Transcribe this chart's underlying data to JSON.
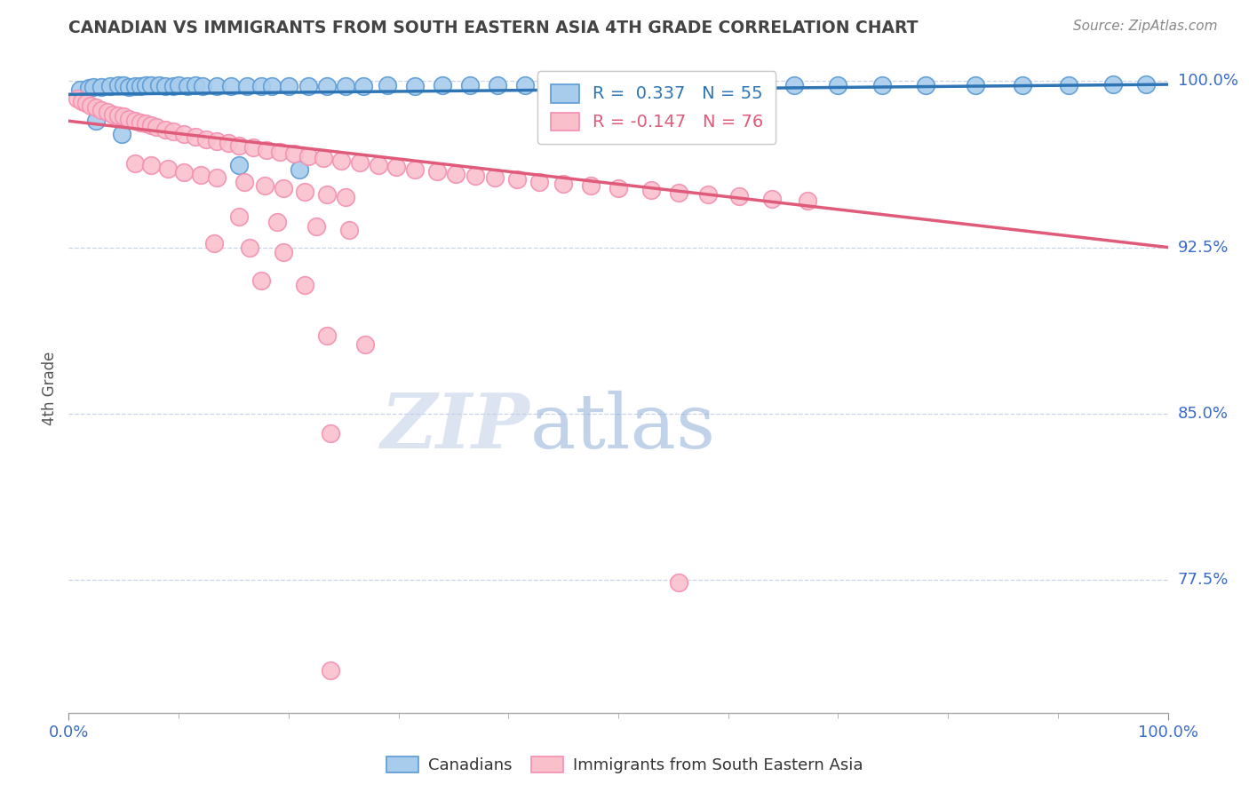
{
  "title": "CANADIAN VS IMMIGRANTS FROM SOUTH EASTERN ASIA 4TH GRADE CORRELATION CHART",
  "source_text": "Source: ZipAtlas.com",
  "ylabel": "4th Grade",
  "x_min": 0.0,
  "x_max": 1.0,
  "y_min": 0.715,
  "y_max": 1.008,
  "y_ticks": [
    1.0,
    0.925,
    0.85,
    0.775
  ],
  "y_tick_labels": [
    "100.0%",
    "92.5%",
    "85.0%",
    "77.5%"
  ],
  "x_tick_labels": [
    "0.0%",
    "100.0%"
  ],
  "legend_blue_label": "R =  0.337   N = 55",
  "legend_pink_label": "R = -0.147   N = 76",
  "legend_xlabel": "Canadians",
  "legend_xlabel2": "Immigrants from South Eastern Asia",
  "blue_fill_color": "#a8ccec",
  "pink_fill_color": "#f9c0cc",
  "blue_edge_color": "#5b9bd5",
  "pink_edge_color": "#f48fb1",
  "blue_line_color": "#2e75b6",
  "pink_line_color": "#e05a7a",
  "blue_scatter": [
    [
      0.01,
      0.996
    ],
    [
      0.018,
      0.997
    ],
    [
      0.022,
      0.9975
    ],
    [
      0.03,
      0.9975
    ],
    [
      0.038,
      0.9978
    ],
    [
      0.045,
      0.998
    ],
    [
      0.05,
      0.998
    ],
    [
      0.055,
      0.9975
    ],
    [
      0.06,
      0.9978
    ],
    [
      0.065,
      0.9978
    ],
    [
      0.07,
      0.998
    ],
    [
      0.075,
      0.998
    ],
    [
      0.082,
      0.998
    ],
    [
      0.088,
      0.9978
    ],
    [
      0.095,
      0.9978
    ],
    [
      0.1,
      0.998
    ],
    [
      0.108,
      0.9978
    ],
    [
      0.115,
      0.998
    ],
    [
      0.122,
      0.9978
    ],
    [
      0.135,
      0.9978
    ],
    [
      0.148,
      0.9978
    ],
    [
      0.162,
      0.9978
    ],
    [
      0.175,
      0.9978
    ],
    [
      0.185,
      0.9978
    ],
    [
      0.2,
      0.9978
    ],
    [
      0.218,
      0.9978
    ],
    [
      0.235,
      0.9978
    ],
    [
      0.252,
      0.9978
    ],
    [
      0.268,
      0.9978
    ],
    [
      0.29,
      0.998
    ],
    [
      0.315,
      0.9978
    ],
    [
      0.34,
      0.998
    ],
    [
      0.365,
      0.998
    ],
    [
      0.39,
      0.998
    ],
    [
      0.415,
      0.998
    ],
    [
      0.445,
      0.998
    ],
    [
      0.47,
      0.998
    ],
    [
      0.5,
      0.998
    ],
    [
      0.53,
      0.998
    ],
    [
      0.56,
      0.9978
    ],
    [
      0.59,
      0.998
    ],
    [
      0.625,
      0.998
    ],
    [
      0.66,
      0.998
    ],
    [
      0.7,
      0.9982
    ],
    [
      0.74,
      0.9982
    ],
    [
      0.78,
      0.9982
    ],
    [
      0.825,
      0.9982
    ],
    [
      0.868,
      0.9982
    ],
    [
      0.91,
      0.9982
    ],
    [
      0.95,
      0.9985
    ],
    [
      0.98,
      0.9985
    ],
    [
      0.025,
      0.982
    ],
    [
      0.048,
      0.976
    ],
    [
      0.155,
      0.962
    ],
    [
      0.21,
      0.96
    ]
  ],
  "pink_scatter": [
    [
      0.008,
      0.992
    ],
    [
      0.012,
      0.991
    ],
    [
      0.016,
      0.99
    ],
    [
      0.02,
      0.989
    ],
    [
      0.025,
      0.988
    ],
    [
      0.03,
      0.987
    ],
    [
      0.035,
      0.986
    ],
    [
      0.04,
      0.985
    ],
    [
      0.045,
      0.9845
    ],
    [
      0.05,
      0.984
    ],
    [
      0.055,
      0.983
    ],
    [
      0.06,
      0.982
    ],
    [
      0.065,
      0.9815
    ],
    [
      0.07,
      0.9808
    ],
    [
      0.075,
      0.98
    ],
    [
      0.08,
      0.9792
    ],
    [
      0.088,
      0.978
    ],
    [
      0.095,
      0.9772
    ],
    [
      0.105,
      0.976
    ],
    [
      0.115,
      0.9748
    ],
    [
      0.125,
      0.9738
    ],
    [
      0.135,
      0.9728
    ],
    [
      0.145,
      0.972
    ],
    [
      0.155,
      0.971
    ],
    [
      0.168,
      0.97
    ],
    [
      0.18,
      0.969
    ],
    [
      0.192,
      0.968
    ],
    [
      0.205,
      0.9672
    ],
    [
      0.218,
      0.9662
    ],
    [
      0.232,
      0.9652
    ],
    [
      0.248,
      0.9642
    ],
    [
      0.265,
      0.9632
    ],
    [
      0.282,
      0.9622
    ],
    [
      0.298,
      0.9612
    ],
    [
      0.315,
      0.9602
    ],
    [
      0.335,
      0.9592
    ],
    [
      0.352,
      0.9582
    ],
    [
      0.37,
      0.9572
    ],
    [
      0.388,
      0.9565
    ],
    [
      0.408,
      0.9555
    ],
    [
      0.428,
      0.9545
    ],
    [
      0.45,
      0.9538
    ],
    [
      0.475,
      0.9528
    ],
    [
      0.5,
      0.9518
    ],
    [
      0.53,
      0.9508
    ],
    [
      0.555,
      0.9498
    ],
    [
      0.582,
      0.9488
    ],
    [
      0.61,
      0.948
    ],
    [
      0.64,
      0.947
    ],
    [
      0.672,
      0.946
    ],
    [
      0.06,
      0.963
    ],
    [
      0.075,
      0.962
    ],
    [
      0.09,
      0.9605
    ],
    [
      0.105,
      0.959
    ],
    [
      0.12,
      0.9575
    ],
    [
      0.135,
      0.9565
    ],
    [
      0.16,
      0.9545
    ],
    [
      0.178,
      0.953
    ],
    [
      0.195,
      0.9515
    ],
    [
      0.215,
      0.95
    ],
    [
      0.235,
      0.9488
    ],
    [
      0.252,
      0.9478
    ],
    [
      0.155,
      0.939
    ],
    [
      0.19,
      0.9365
    ],
    [
      0.225,
      0.9345
    ],
    [
      0.255,
      0.9328
    ],
    [
      0.132,
      0.927
    ],
    [
      0.165,
      0.9248
    ],
    [
      0.195,
      0.923
    ],
    [
      0.175,
      0.91
    ],
    [
      0.215,
      0.908
    ],
    [
      0.235,
      0.885
    ],
    [
      0.27,
      0.881
    ],
    [
      0.238,
      0.841
    ],
    [
      0.555,
      0.774
    ],
    [
      0.238,
      0.734
    ]
  ],
  "blue_trend_x": [
    0.0,
    1.0
  ],
  "blue_trend_y": [
    0.994,
    0.9985
  ],
  "pink_trend_x": [
    0.0,
    1.0
  ],
  "pink_trend_y": [
    0.982,
    0.925
  ],
  "watermark_zip": "ZIP",
  "watermark_atlas": "atlas",
  "background_color": "#ffffff",
  "grid_color": "#c8d4e8",
  "tick_label_color": "#3a6bc8",
  "title_color": "#444444",
  "ylabel_color": "#555555"
}
